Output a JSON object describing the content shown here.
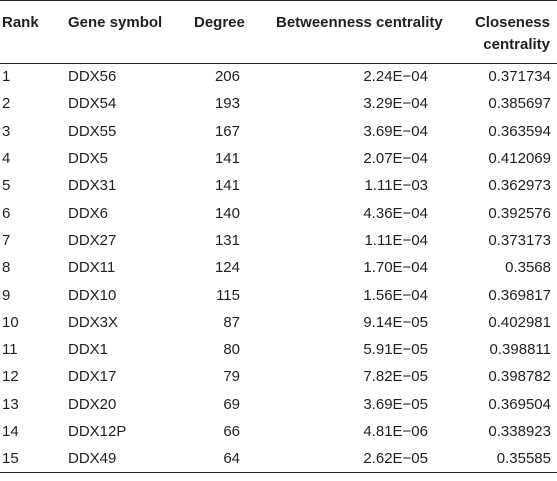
{
  "table": {
    "headers": {
      "rank": "Rank",
      "gene_symbol": "Gene symbol",
      "degree": "Degree",
      "betweenness": "Betweenness centrality",
      "closeness_line1": "Closeness",
      "closeness_line2": "centrality"
    },
    "rows": [
      {
        "rank": "1",
        "gene": "DDX56",
        "degree": "206",
        "betweenness": "2.24E−04",
        "closeness": "0.371734"
      },
      {
        "rank": "2",
        "gene": "DDX54",
        "degree": "193",
        "betweenness": "3.29E−04",
        "closeness": "0.385697"
      },
      {
        "rank": "3",
        "gene": "DDX55",
        "degree": "167",
        "betweenness": "3.69E−04",
        "closeness": "0.363594"
      },
      {
        "rank": "4",
        "gene": "DDX5",
        "degree": "141",
        "betweenness": "2.07E−04",
        "closeness": "0.412069"
      },
      {
        "rank": "5",
        "gene": "DDX31",
        "degree": "141",
        "betweenness": "1.11E−03",
        "closeness": "0.362973"
      },
      {
        "rank": "6",
        "gene": "DDX6",
        "degree": "140",
        "betweenness": "4.36E−04",
        "closeness": "0.392576"
      },
      {
        "rank": "7",
        "gene": "DDX27",
        "degree": "131",
        "betweenness": "1.11E−04",
        "closeness": "0.373173"
      },
      {
        "rank": "8",
        "gene": "DDX11",
        "degree": "124",
        "betweenness": "1.70E−04",
        "closeness": "0.3568"
      },
      {
        "rank": "9",
        "gene": "DDX10",
        "degree": "115",
        "betweenness": "1.56E−04",
        "closeness": "0.369817"
      },
      {
        "rank": "10",
        "gene": "DDX3X",
        "degree": "87",
        "betweenness": "9.14E−05",
        "closeness": "0.402981"
      },
      {
        "rank": "11",
        "gene": "DDX1",
        "degree": "80",
        "betweenness": "5.91E−05",
        "closeness": "0.398811"
      },
      {
        "rank": "12",
        "gene": "DDX17",
        "degree": "79",
        "betweenness": "7.82E−05",
        "closeness": "0.398782"
      },
      {
        "rank": "13",
        "gene": "DDX20",
        "degree": "69",
        "betweenness": "3.69E−05",
        "closeness": "0.369504"
      },
      {
        "rank": "14",
        "gene": "DDX12P",
        "degree": "66",
        "betweenness": "4.81E−06",
        "closeness": "0.338923"
      },
      {
        "rank": "15",
        "gene": "DDX49",
        "degree": "64",
        "betweenness": "2.62E−05",
        "closeness": "0.35585"
      }
    ]
  }
}
